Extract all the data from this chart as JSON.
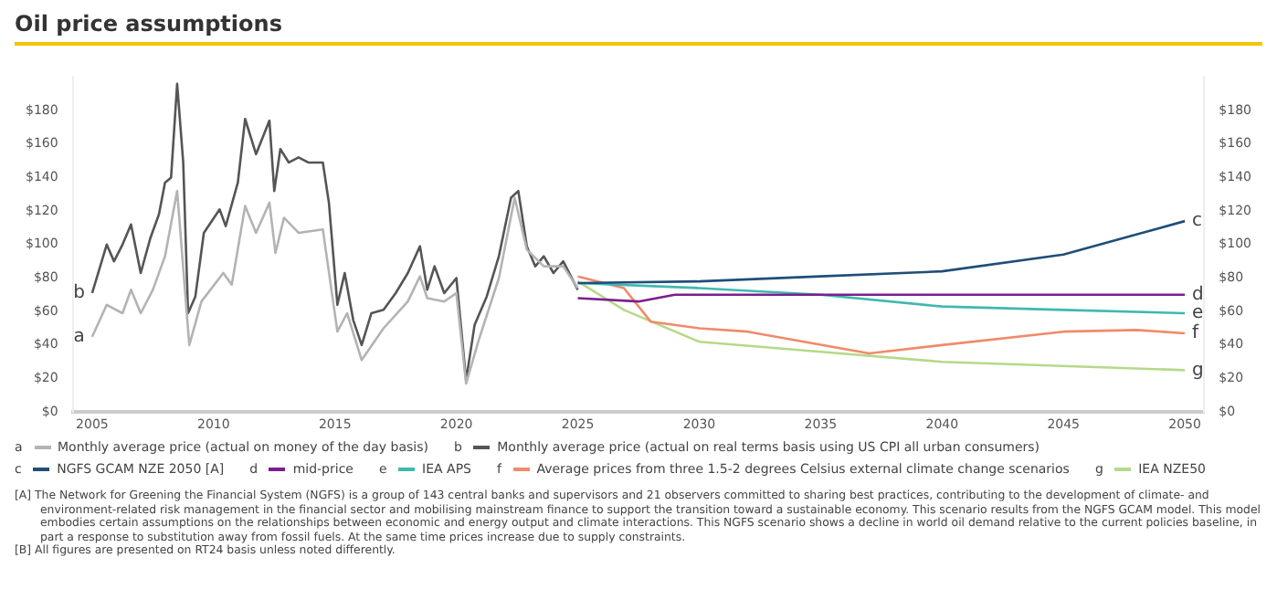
{
  "chart_data": {
    "type": "line",
    "title": "Oil price assumptions",
    "xlim": [
      2004.2,
      2050.8
    ],
    "xticks": [
      2005,
      2010,
      2015,
      2020,
      2025,
      2030,
      2035,
      2040,
      2045,
      2050
    ],
    "ylim": [
      0,
      200
    ],
    "yticks": [
      {
        "value": 0,
        "label": "$0"
      },
      {
        "value": 20,
        "label": "$20"
      },
      {
        "value": 40,
        "label": "$40"
      },
      {
        "value": 60,
        "label": "$60"
      },
      {
        "value": 80,
        "label": "$80"
      },
      {
        "value": 100,
        "label": "$100"
      },
      {
        "value": 120,
        "label": "$120"
      },
      {
        "value": 140,
        "label": "$140"
      },
      {
        "value": 160,
        "label": "$160"
      },
      {
        "value": 180,
        "label": "$180"
      }
    ],
    "y2lim": [
      0,
      200
    ],
    "y2ticks": [
      {
        "value": 0,
        "label": "$0"
      },
      {
        "value": 20,
        "label": "$20"
      },
      {
        "value": 40,
        "label": "$40"
      },
      {
        "value": 60,
        "label": "$60"
      },
      {
        "value": 80,
        "label": "$80"
      },
      {
        "value": 100,
        "label": "$100"
      },
      {
        "value": 120,
        "label": "$120"
      },
      {
        "value": 140,
        "label": "$140"
      },
      {
        "value": 160,
        "label": "$160"
      },
      {
        "value": 180,
        "label": "$180"
      }
    ],
    "grid": false,
    "legend": "bottom",
    "marker": "none",
    "line_style": "solid",
    "series": [
      {
        "name": "Monthly average price (actual on money of the day basis)",
        "color": "#b3b3b3",
        "x": [
          2005,
          2005.6,
          2006.25,
          2006.6,
          2007,
          2007.5,
          2008,
          2008.5,
          2009,
          2009.5,
          2010.4,
          2010.75,
          2011.3,
          2011.75,
          2012.3,
          2012.55,
          2012.9,
          2013.5,
          2014.5,
          2015.1,
          2015.5,
          2016.1,
          2017,
          2018,
          2018.5,
          2018.8,
          2019.5,
          2020,
          2020.4,
          2020.9,
          2021.75,
          2022.4,
          2022.9,
          2023.6,
          2024.4,
          2025
        ],
        "values": [
          45,
          64,
          59,
          73,
          59,
          73,
          93,
          132,
          40,
          66,
          83,
          76,
          123,
          107,
          125,
          95,
          116,
          107,
          109,
          48,
          59,
          31,
          50,
          66,
          81,
          68,
          66,
          71,
          17,
          42,
          80,
          128,
          97,
          87,
          87,
          74
        ]
      },
      {
        "name": "Monthly average price (actual on real terms basis using US CPI all urban consumers)",
        "color": "#555555",
        "x": [
          2005,
          2005.25,
          2005.6,
          2005.9,
          2006.25,
          2006.6,
          2007,
          2007.4,
          2007.75,
          2008,
          2008.25,
          2008.5,
          2008.75,
          2008.95,
          2009.25,
          2009.6,
          2010.25,
          2010.5,
          2011,
          2011.3,
          2011.75,
          2012.3,
          2012.5,
          2012.75,
          2013.1,
          2013.5,
          2013.9,
          2014.5,
          2014.75,
          2015.1,
          2015.4,
          2015.75,
          2016.1,
          2016.5,
          2017,
          2017.5,
          2018,
          2018.5,
          2018.8,
          2019.1,
          2019.5,
          2020,
          2020.4,
          2020.75,
          2021.25,
          2021.75,
          2022.25,
          2022.55,
          2022.9,
          2023.25,
          2023.6,
          2024,
          2024.4,
          2025
        ],
        "values": [
          71,
          83,
          100,
          90,
          100,
          112,
          83,
          104,
          118,
          137,
          140,
          196,
          149,
          59,
          69,
          107,
          121,
          111,
          137,
          175,
          154,
          174,
          132,
          157,
          149,
          152,
          149,
          149,
          125,
          64,
          83,
          55,
          40,
          59,
          61,
          71,
          83,
          99,
          73,
          87,
          71,
          80,
          19,
          52,
          69,
          93,
          128,
          132,
          99,
          87,
          93,
          83,
          90,
          73
        ]
      },
      {
        "name": "NGFS GCAM NZE 2050 [A]",
        "color": "#1f4e79",
        "x": [
          2025,
          2030,
          2035,
          2040,
          2045,
          2050
        ],
        "values": [
          77,
          78,
          81,
          84,
          94,
          114
        ]
      },
      {
        "name": "mid-price",
        "color": "#7a1f8c",
        "x": [
          2025,
          2027.5,
          2029,
          2050
        ],
        "values": [
          68,
          66,
          70,
          70
        ]
      },
      {
        "name": "IEA APS",
        "color": "#3fb8b0",
        "x": [
          2025,
          2030,
          2035,
          2040,
          2045,
          2050
        ],
        "values": [
          77,
          74,
          70,
          63,
          61,
          59
        ]
      },
      {
        "name": "Average prices from three 1.5-2 degrees Celsius external climate change scenarios",
        "color": "#f08a6a",
        "x": [
          2025,
          2026.9,
          2028,
          2030,
          2032,
          2037,
          2040,
          2045,
          2048,
          2050
        ],
        "values": [
          81,
          74,
          54,
          50,
          48,
          35,
          40,
          48,
          49,
          47
        ]
      },
      {
        "name": "IEA NZE50",
        "color": "#b5d98a",
        "x": [
          2025,
          2026.9,
          2030,
          2035,
          2040,
          2050
        ],
        "values": [
          78,
          61,
          42,
          36,
          30,
          25
        ]
      }
    ],
    "annotations": [
      "a",
      "b",
      "c",
      "d",
      "e",
      "f",
      "g",
      "[A] The Network for Greening the Financial System (NGFS) is a group of 143 central banks and supervisors and 21 observers committed to sharing best practices, contributing to the development of climate- and environment-related risk management in the financial sector and mobilising mainstream finance to support the transition toward a sustainable economy. This scenario results from the NGFS GCAM model. This model embodies certain assumptions on the relationships between economic and energy output and climate interactions. This NGFS scenario shows a decline in world oil demand relative to the current policies baseline, in part a response to substitution away from fossil fuels. At the same time prices increase due to supply constraints.",
      "[B] All figures are presented on RT24 basis unless noted differently."
    ]
  }
}
